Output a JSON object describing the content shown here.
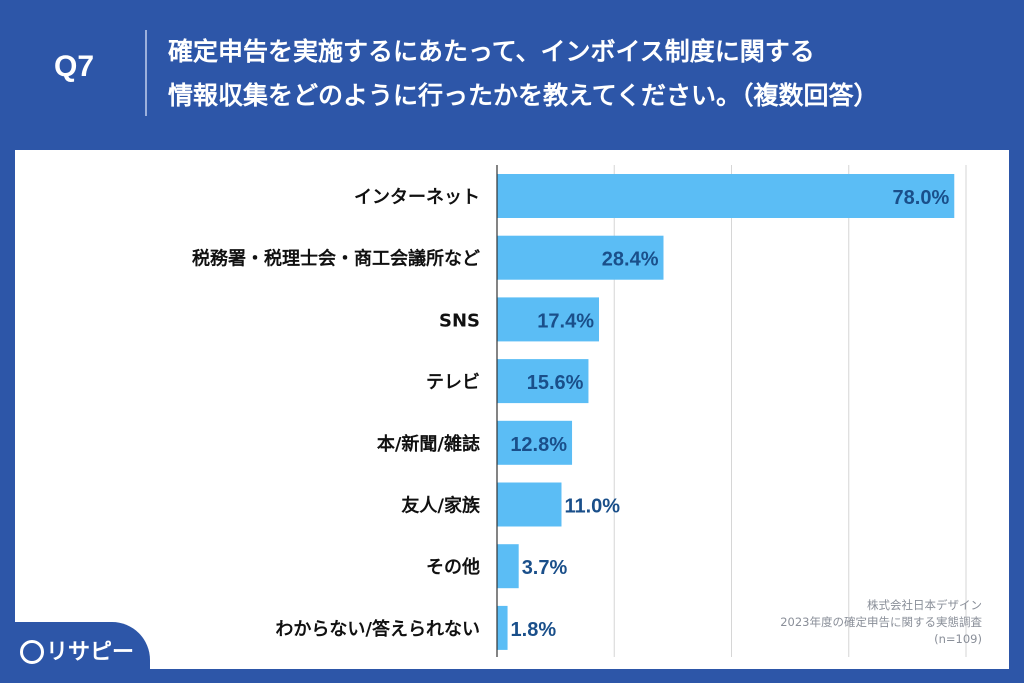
{
  "header": {
    "question_number": "Q7",
    "question_line1": "確定申告を実施するにあたって、インボイス制度に関する",
    "question_line2": "情報収集をどのように行ったかを教えてください。（複数回答）"
  },
  "chart_data": {
    "type": "bar",
    "orientation": "horizontal",
    "categories": [
      "インターネット",
      "税務署・税理士会・商工会議所など",
      "SNS",
      "テレビ",
      "本/新聞/雑誌",
      "友人/家族",
      "その他",
      "わからない/答えられない"
    ],
    "values": [
      78.0,
      28.4,
      17.4,
      15.6,
      12.8,
      11.0,
      3.7,
      1.8
    ],
    "value_labels": [
      "78.0%",
      "28.4%",
      "17.4%",
      "15.6%",
      "12.8%",
      "11.0%",
      "3.7%",
      "1.8%"
    ],
    "xlim": [
      0,
      80
    ],
    "x_gridlines": [
      20,
      40,
      60,
      80
    ],
    "bar_color": "#5bbdf5",
    "label_color": "#1a4f8a",
    "title": "",
    "xlabel": "",
    "ylabel": ""
  },
  "source": {
    "company": "株式会社日本デザイン",
    "survey": "2023年度の確定申告に関する実態調査",
    "sample": "(n=109)"
  },
  "brand": {
    "logo_text": "リサピー"
  },
  "colors": {
    "background": "#2d56a8",
    "panel": "#ffffff"
  }
}
